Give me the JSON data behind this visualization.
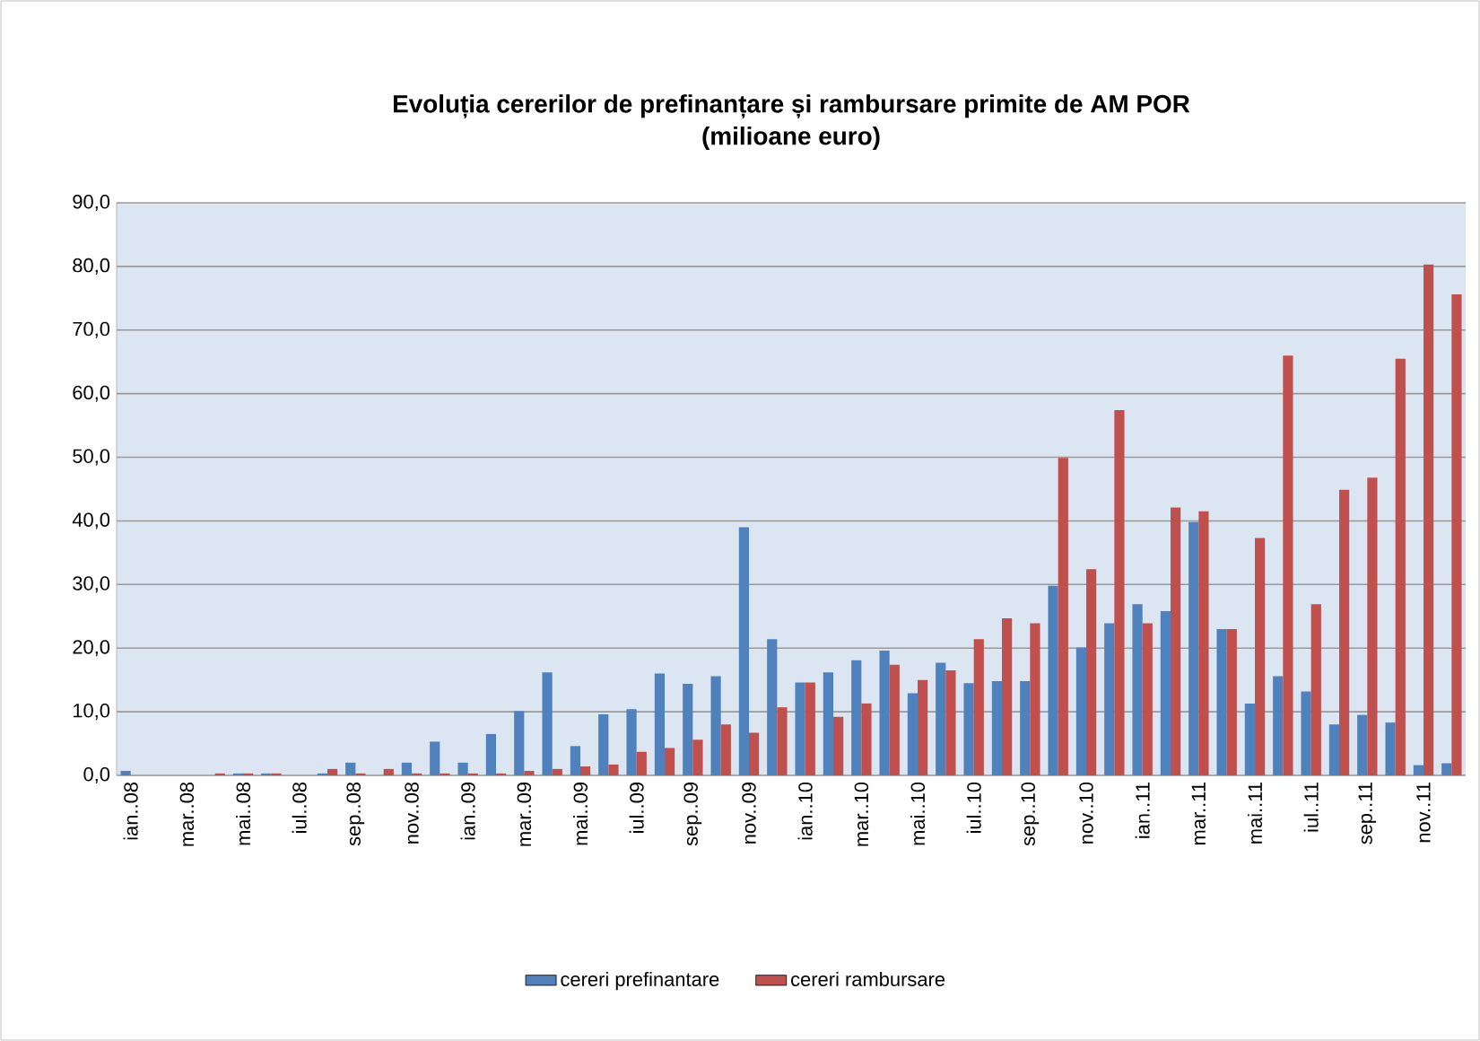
{
  "chart_data": {
    "type": "bar",
    "title": "Evoluția cererilor de prefinanțare și rambursare primite de AM POR",
    "subtitle": "(milioane euro)",
    "categories": [
      "ian..08",
      null,
      "mar..08",
      null,
      "mai..08",
      null,
      "iul..08",
      null,
      "sep..08",
      null,
      "nov..08",
      null,
      "ian..09",
      null,
      "mar..09",
      null,
      "mai..09",
      null,
      "iul..09",
      null,
      "sep..09",
      null,
      "nov..09",
      null,
      "ian..10",
      null,
      "mar..10",
      null,
      "mai..10",
      null,
      "iul..10",
      null,
      "sep..10",
      null,
      "nov..10",
      null,
      "ian..11",
      null,
      "mar..11",
      null,
      "mai..11",
      null,
      "iul..11",
      null,
      "sep..11",
      null,
      "nov..11",
      null
    ],
    "series": [
      {
        "name": "cereri prefinantare",
        "color": "#4f81bd",
        "values": [
          0.7,
          0,
          0,
          0,
          0.3,
          0.3,
          0,
          0.3,
          2.0,
          0,
          2.0,
          5.3,
          2.0,
          6.5,
          10.1,
          16.2,
          4.6,
          9.6,
          10.4,
          16.0,
          14.4,
          15.6,
          39.0,
          21.4,
          14.6,
          16.2,
          18.1,
          19.6,
          12.9,
          17.7,
          14.5,
          14.8,
          14.8,
          29.8,
          20.1,
          23.9,
          26.9,
          25.8,
          39.8,
          23.0,
          11.3,
          15.6,
          13.2,
          8.0,
          9.5,
          8.3,
          1.6,
          1.9
        ]
      },
      {
        "name": "cereri rambursare",
        "color": "#c0504d",
        "values": [
          0,
          0,
          0,
          0.3,
          0.3,
          0.3,
          0,
          1.0,
          0.3,
          1.0,
          0.3,
          0.3,
          0.3,
          0.3,
          0.7,
          1.0,
          1.4,
          1.7,
          3.7,
          4.3,
          5.6,
          8.0,
          6.7,
          10.7,
          14.6,
          9.2,
          11.3,
          17.4,
          15.0,
          16.5,
          21.4,
          24.7,
          23.9,
          49.9,
          32.4,
          57.4,
          23.9,
          42.1,
          41.5,
          23.0,
          37.3,
          66.0,
          26.9,
          44.9,
          46.8,
          65.5,
          80.3,
          75.6
        ]
      }
    ],
    "ylim": [
      0,
      90
    ],
    "yticks": [
      {
        "value": 0,
        "label": "0,0"
      },
      {
        "value": 10,
        "label": "10,0"
      },
      {
        "value": 20,
        "label": "20,0"
      },
      {
        "value": 30,
        "label": "30,0"
      },
      {
        "value": 40,
        "label": "40,0"
      },
      {
        "value": 50,
        "label": "50,0"
      },
      {
        "value": 60,
        "label": "60,0"
      },
      {
        "value": 70,
        "label": "70,0"
      },
      {
        "value": 80,
        "label": "80,0"
      },
      {
        "value": 90,
        "label": "90,0"
      }
    ],
    "grid": "y",
    "legend": "bottom"
  }
}
